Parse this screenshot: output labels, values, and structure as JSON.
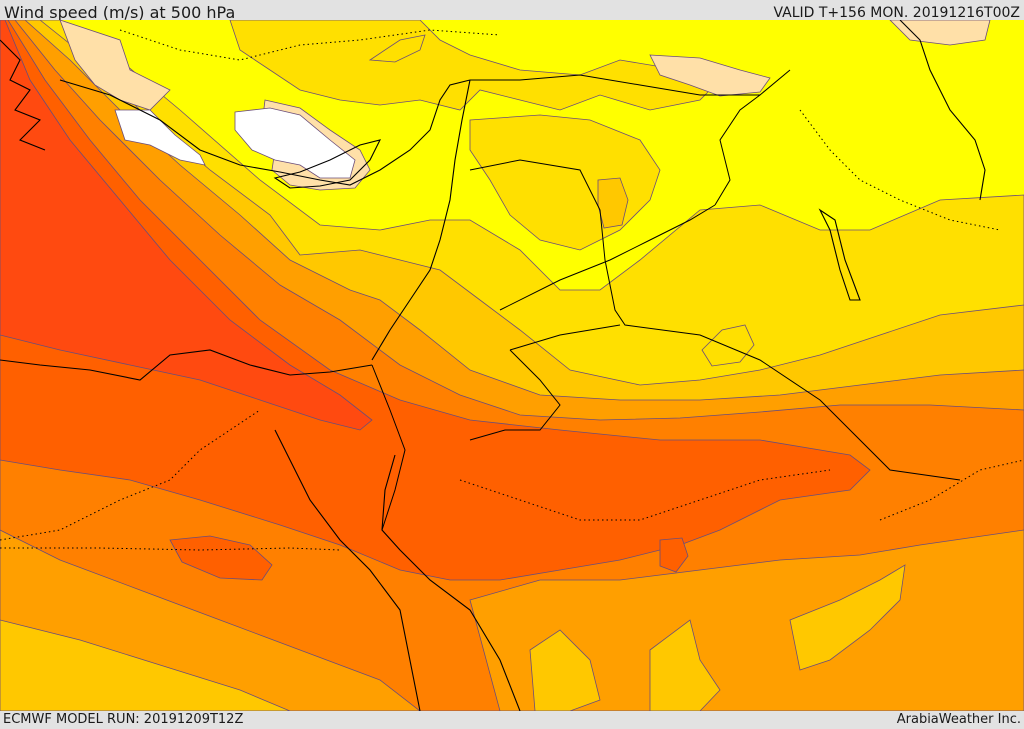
{
  "header": {
    "title": "Wind speed (m/s) at 500 hPa",
    "valid": "VALID T+156 MON. 20191216T00Z"
  },
  "footer": {
    "model_run": "ECMWF MODEL RUN: 20191209T12Z",
    "credit": "ArabiaWeather Inc."
  },
  "colors": {
    "below_10": "#ffffff",
    "10_15": "#ffe0a8",
    "15_20": "#ffff00",
    "20_25": "#ffe000",
    "25_30": "#ffc800",
    "30_35": "#ff9f00",
    "35_40": "#ff8000",
    "40_45": "#ff6000",
    "45_50": "#ff4a10",
    "coastline": "#000000"
  }
}
